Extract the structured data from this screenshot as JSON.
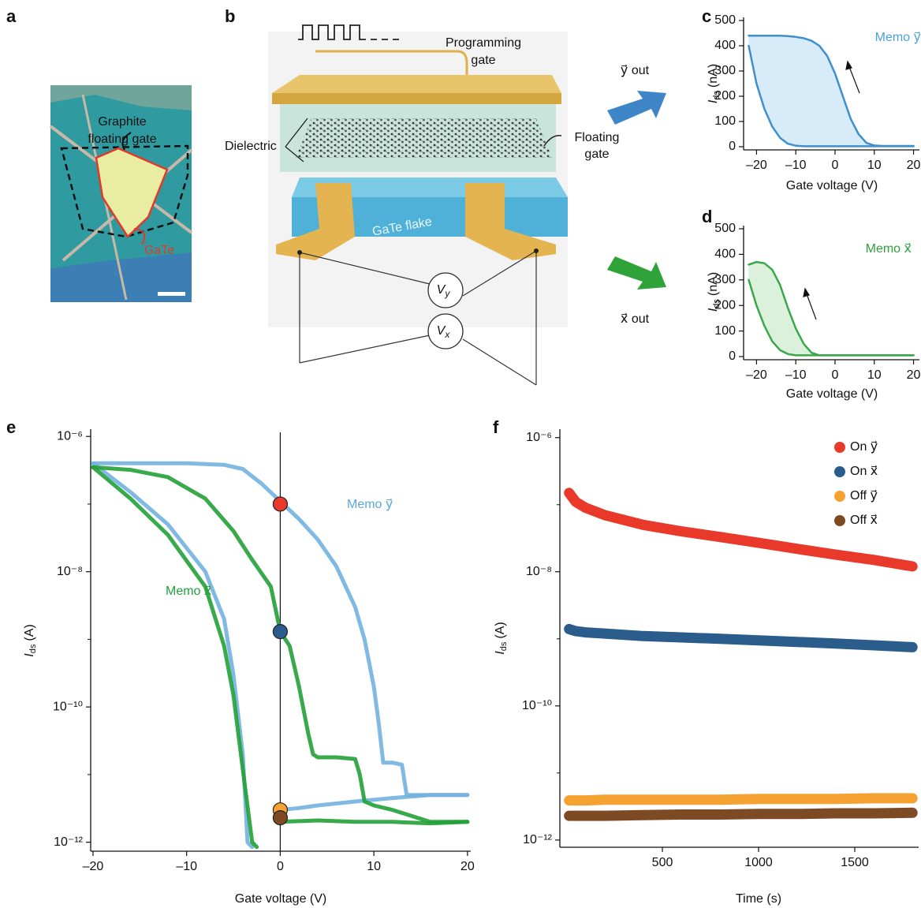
{
  "panel_labels": [
    "a",
    "b",
    "c",
    "d",
    "e",
    "f"
  ],
  "panel_a": {
    "graphite": [
      "Graphite",
      "floating gate"
    ],
    "gate_material": "GaTe"
  },
  "panel_b": {
    "programming_gate": [
      "Programming",
      "gate"
    ],
    "dielectric": "Dielectric",
    "floating_gate": [
      "Floating",
      "gate"
    ],
    "flake": "GaTe flake",
    "vy": {
      "symbol": "V",
      "subscript": "y"
    },
    "vx": {
      "symbol": "V",
      "subscript": "x"
    },
    "y_out": "y⃗ out",
    "x_out": "x⃗ out"
  },
  "chart_data": [
    {
      "type": "line",
      "xlabel": "Gate voltage (V)",
      "ylabel": {
        "symbol": "I",
        "subscript": "ds",
        "unit": "(nA)"
      },
      "x": [
        -22,
        -20,
        -18,
        -16,
        -14,
        -12,
        -10,
        -8,
        -6,
        -4,
        -2,
        0,
        2,
        4,
        6,
        8,
        10,
        12,
        14,
        16,
        18,
        20
      ],
      "series": [
        {
          "color": "#3f8fcf",
          "values": [
            400,
            250,
            150,
            80,
            35,
            12,
            4,
            2,
            2,
            2,
            2,
            2,
            2,
            2,
            2,
            2,
            2,
            2,
            2,
            2,
            2,
            2
          ]
        },
        {
          "color": "#3f8fcf",
          "values": [
            440,
            440,
            440,
            440,
            440,
            438,
            435,
            430,
            420,
            400,
            360,
            290,
            200,
            110,
            50,
            15,
            5,
            3,
            3,
            3,
            3,
            3
          ]
        }
      ],
      "fill_between": true,
      "fill_color": "#d8ebf8",
      "annotation": "Memo y⃗",
      "annotation_color": "#4aa3da",
      "xlim": [
        -23.3,
        21.5
      ],
      "ylim": [
        0,
        500
      ],
      "xticks": [
        {
          "value": -20,
          "label": "–20"
        },
        {
          "value": -10,
          "label": "–10"
        },
        0,
        10,
        20
      ],
      "yticks": [
        0,
        100,
        200,
        300,
        400,
        500
      ]
    },
    {
      "type": "line",
      "xlabel": "Gate voltage (V)",
      "ylabel": {
        "symbol": "I",
        "subscript": "ds",
        "unit": "(nA)"
      },
      "x": [
        -22,
        -20,
        -18,
        -16,
        -14,
        -12,
        -10,
        -8,
        -6,
        -4,
        -2,
        0,
        2,
        4,
        6,
        8,
        10,
        12,
        14,
        16,
        18,
        20
      ],
      "series": [
        {
          "color": "#3aa84a",
          "values": [
            300,
            200,
            120,
            60,
            25,
            10,
            5,
            5,
            5,
            5,
            5,
            5,
            5,
            5,
            5,
            5,
            5,
            5,
            5,
            5,
            5,
            5
          ]
        },
        {
          "color": "#3aa84a",
          "values": [
            360,
            370,
            365,
            340,
            280,
            190,
            110,
            50,
            15,
            5,
            5,
            5,
            5,
            5,
            5,
            5,
            5,
            5,
            5,
            5,
            5,
            5
          ]
        }
      ],
      "fill_between": true,
      "fill_color": "#dcf1dc",
      "annotation": "Memo x⃗",
      "annotation_color": "#2e9e3e",
      "xlim": [
        -23.3,
        21.5
      ],
      "ylim": [
        0,
        500
      ],
      "xticks": [
        {
          "value": -20,
          "label": "–20"
        },
        {
          "value": -10,
          "label": "–10"
        },
        0,
        10,
        20
      ],
      "yticks": [
        0,
        100,
        200,
        300,
        400,
        500
      ]
    },
    {
      "type": "line",
      "yscale": "log",
      "xlabel": "Gate voltage (V)",
      "ylabel": {
        "symbol": "I",
        "subscript": "ds",
        "unit": "(A)"
      },
      "series": [
        {
          "color": "#72b3df",
          "x": [
            -20,
            -15,
            -10,
            -6,
            -4,
            -2,
            0,
            2,
            4,
            6,
            8,
            9,
            10,
            10.5,
            11,
            12,
            13,
            13.5,
            14,
            16,
            18,
            20
          ],
          "values": [
            4e-07,
            4e-07,
            4e-07,
            3.8e-07,
            3.3e-07,
            2e-07,
            1.1e-07,
            6e-08,
            3e-08,
            1.2e-08,
            3e-09,
            1e-09,
            2e-10,
            6e-11,
            1.5e-11,
            1.5e-11,
            1.4e-11,
            5e-12,
            5e-12,
            5e-12,
            5e-12,
            5e-12
          ]
        },
        {
          "color": "#72b3df",
          "x": [
            -20,
            -16,
            -12,
            -8,
            -6,
            -5,
            -4,
            -3.5,
            -3
          ],
          "values": [
            4e-07,
            1.5e-07,
            5e-08,
            1e-08,
            2e-09,
            3e-10,
            2e-11,
            1e-12,
            8.5e-13
          ]
        },
        {
          "color": "#72b3df",
          "x": [
            0,
            2,
            4,
            8,
            12,
            16,
            20
          ],
          "values": [
            3e-12,
            3.2e-12,
            3.5e-12,
            4e-12,
            4.5e-12,
            5e-12,
            5e-12
          ]
        },
        {
          "color": "#22a138",
          "x": [
            -20,
            -16,
            -12,
            -8,
            -5,
            -3,
            -1,
            0,
            1,
            2,
            3,
            3.5,
            4,
            6,
            8,
            8.5,
            9,
            10,
            12,
            16,
            20
          ],
          "values": [
            3.5e-07,
            3.2e-07,
            2.5e-07,
            1.2e-07,
            4e-08,
            1.5e-08,
            6e-09,
            1.3e-09,
            8e-10,
            2e-10,
            4e-11,
            2e-11,
            1.8e-11,
            1.8e-11,
            1.7e-11,
            1e-11,
            4e-12,
            3.5e-12,
            3e-12,
            2e-12,
            2e-12
          ]
        },
        {
          "color": "#22a138",
          "x": [
            -20,
            -16,
            -12,
            -8,
            -6,
            -5,
            -4,
            -3,
            -2.5
          ],
          "values": [
            3.5e-07,
            1.2e-07,
            3.5e-08,
            6e-09,
            8e-10,
            1.5e-10,
            1.2e-11,
            1e-12,
            8.5e-13
          ]
        },
        {
          "color": "#22a138",
          "x": [
            0,
            4,
            8,
            12,
            16,
            20
          ],
          "values": [
            2e-12,
            2.1e-12,
            2e-12,
            2e-12,
            1.9e-12,
            2e-12
          ]
        }
      ],
      "points": [
        {
          "x": 0,
          "value": 1e-07,
          "color": "#e8392a"
        },
        {
          "x": 0,
          "value": 1.3e-09,
          "color": "#2a5d8c"
        },
        {
          "x": 0,
          "value": 3e-12,
          "color": "#f5a232"
        },
        {
          "x": 0,
          "value": 2.3e-12,
          "color": "#7d4a24"
        }
      ],
      "annotations": [
        {
          "text": "Memo y⃗",
          "color": "#5aa8dc"
        },
        {
          "text": "Memo x⃗",
          "color": "#22a138"
        }
      ],
      "xlim": [
        -20.25,
        20.35
      ],
      "ylim": [
        8.2e-13,
        1.15e-06
      ],
      "xticks": [
        {
          "value": -20,
          "label": "–20"
        },
        {
          "value": -10,
          "label": "–10"
        },
        0,
        10,
        20
      ],
      "yticks": [
        {
          "value": 1e-06,
          "label": "10⁻⁶"
        },
        {
          "value": 1e-08,
          "label": "10⁻⁸"
        },
        {
          "value": 1e-10,
          "label": "10⁻¹⁰"
        },
        {
          "value": 1e-12,
          "label": "10⁻¹²"
        }
      ],
      "yminorticks": [
        1e-07,
        1e-09,
        1e-11
      ]
    },
    {
      "type": "line",
      "yscale": "log",
      "xlabel": "Time (s)",
      "ylabel": {
        "symbol": "I",
        "subscript": "ds",
        "unit": "(A)"
      },
      "x": [
        15,
        50,
        100,
        200,
        400,
        600,
        800,
        1000,
        1200,
        1400,
        1600,
        1800
      ],
      "series": [
        {
          "name": "On y⃗",
          "color": "#e8392a",
          "values": [
            1.5e-07,
            1.1e-07,
            9e-08,
            7e-08,
            5e-08,
            4e-08,
            3.3e-08,
            2.7e-08,
            2.2e-08,
            1.8e-08,
            1.5e-08,
            1.2e-08
          ]
        },
        {
          "name": "On x⃗",
          "color": "#2a5d8c",
          "values": [
            1.4e-09,
            1.3e-09,
            1.25e-09,
            1.2e-09,
            1.1e-09,
            1.05e-09,
            1e-09,
            9.5e-10,
            9e-10,
            8.5e-10,
            8e-10,
            7.5e-10
          ]
        },
        {
          "name": "Off y⃗",
          "color": "#f5a232",
          "values": [
            3.9e-12,
            3.9e-12,
            3.9e-12,
            4e-12,
            4e-12,
            4e-12,
            4e-12,
            4.1e-12,
            4.1e-12,
            4.1e-12,
            4.2e-12,
            4.2e-12
          ]
        },
        {
          "name": "Off x⃗",
          "color": "#7d4a24",
          "values": [
            2.3e-12,
            2.3e-12,
            2.3e-12,
            2.3e-12,
            2.35e-12,
            2.4e-12,
            2.4e-12,
            2.45e-12,
            2.45e-12,
            2.5e-12,
            2.5e-12,
            2.55e-12
          ]
        }
      ],
      "legend": "top-right",
      "xlim": [
        -33,
        1832
      ],
      "ylim": [
        8.7e-13,
        1.2e-06
      ],
      "xticks": [
        500,
        1000,
        1500
      ],
      "yticks": [
        {
          "value": 1e-06,
          "label": "10⁻⁶"
        },
        {
          "value": 1e-08,
          "label": "10⁻⁸"
        },
        {
          "value": 1e-10,
          "label": "10⁻¹⁰"
        },
        {
          "value": 1e-12,
          "label": "10⁻¹²"
        }
      ],
      "yminorticks": [
        1e-07,
        1e-09,
        1e-11
      ]
    }
  ]
}
